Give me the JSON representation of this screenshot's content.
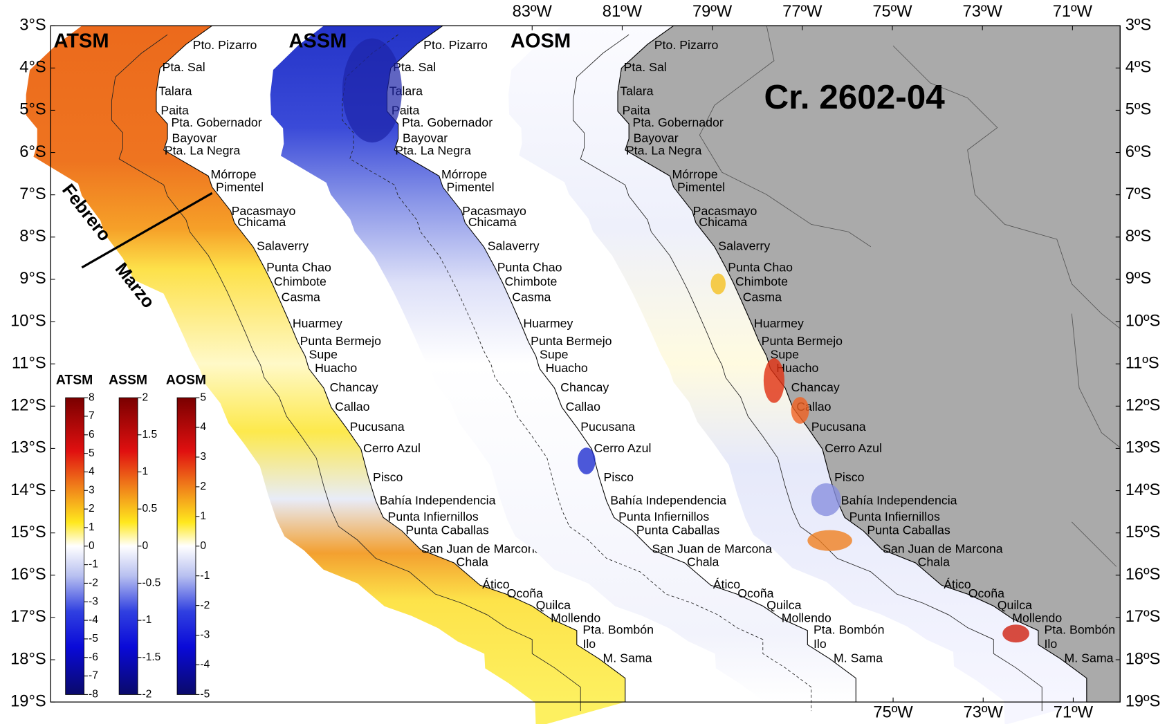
{
  "title": "Cr. 2602-04",
  "panels": [
    {
      "label": "ATSM"
    },
    {
      "label": "ASSM"
    },
    {
      "label": "AOSM"
    }
  ],
  "latitude_labels_left": [
    "3°S",
    "4°S",
    "5°S",
    "6°S",
    "7°S",
    "8°S",
    "9°S",
    "10°S",
    "11°S",
    "12°S",
    "13°S",
    "14°S",
    "15°S",
    "16°S",
    "17°S",
    "18°S",
    "19°S"
  ],
  "latitude_labels_right": [
    "3ºS",
    "4ºS",
    "5ºS",
    "6ºS",
    "7ºS",
    "8ºS",
    "9ºS",
    "10ºS",
    "11ºS",
    "12ºS",
    "13ºS",
    "14ºS",
    "15ºS",
    "16ºS",
    "17ºS",
    "18ºS",
    "19ºS"
  ],
  "longitude_labels_top": [
    "83ºW",
    "81ºW",
    "79ºW",
    "77ºW",
    "75ºW",
    "73ºW",
    "71ºW"
  ],
  "longitude_labels_bottom": [
    "75ºW",
    "73ºW",
    "71ºW"
  ],
  "ports": [
    "Pto. Pizarro",
    "Pta. Sal",
    "Talara",
    "Paita",
    "Pta. Gobernador",
    "Bayovar",
    "Pta. La Negra",
    "Mórrope",
    "Pimentel",
    "Pacasmayo",
    "Chicama",
    "Salaverry",
    "Punta Chao",
    "Chimbote",
    "Casma",
    "Huarmey",
    "Punta Bermejo",
    "Supe",
    "Huacho",
    "Chancay",
    "Callao",
    "Pucusana",
    "Cerro Azul",
    "Pisco",
    "Bahía Independencia",
    "Punta Infiernillos",
    "Punta Caballas",
    "San Juan de Marcona",
    "Chala",
    "Ático",
    "Ocoña",
    "Quilca",
    "Mollendo",
    "Pta. Bombón",
    "Ilo",
    "M. Sama"
  ],
  "period_labels": [
    "Febrero",
    "Marzo"
  ],
  "colorbars": [
    {
      "label": "ATSM",
      "ticks": [
        "8",
        "7",
        "6",
        "5",
        "4",
        "3",
        "2",
        "1",
        "0",
        "-1",
        "-2",
        "-3",
        "-4",
        "-5",
        "-6",
        "-7",
        "-8"
      ]
    },
    {
      "label": "ASSM",
      "ticks": [
        "2",
        "1.5",
        "1",
        "0.5",
        "0",
        "-0.5",
        "-1",
        "-1.5",
        "-2"
      ]
    },
    {
      "label": "AOSM",
      "ticks": [
        "5",
        "4",
        "3",
        "2",
        "1",
        "0",
        "-1",
        "-2",
        "-3",
        "-4",
        "-5"
      ]
    }
  ]
}
